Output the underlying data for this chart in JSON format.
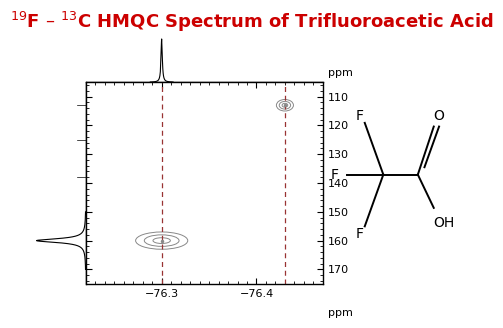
{
  "title": "$^{19}$F – $^{13}$C HMQC Spectrum of Trifluoroacetic Acid",
  "title_color": "#cc0000",
  "title_fontsize": 13,
  "background_color": "#ffffff",
  "plot_bg_color": "#ffffff",
  "xlim_left": -76.22,
  "xlim_right": -76.47,
  "ylim_top": 105,
  "ylim_bottom": 175,
  "xticks": [
    -76.3,
    -76.4
  ],
  "yticks": [
    110,
    120,
    130,
    140,
    150,
    160,
    170
  ],
  "dashed_x1": -76.3,
  "dashed_x2": -76.43,
  "spot1_x": -76.43,
  "spot1_y": 113,
  "spot2_x": -76.3,
  "spot2_y": 160,
  "dashed_color": "#993333",
  "peak_x": -76.3,
  "side_peak_y": 160
}
